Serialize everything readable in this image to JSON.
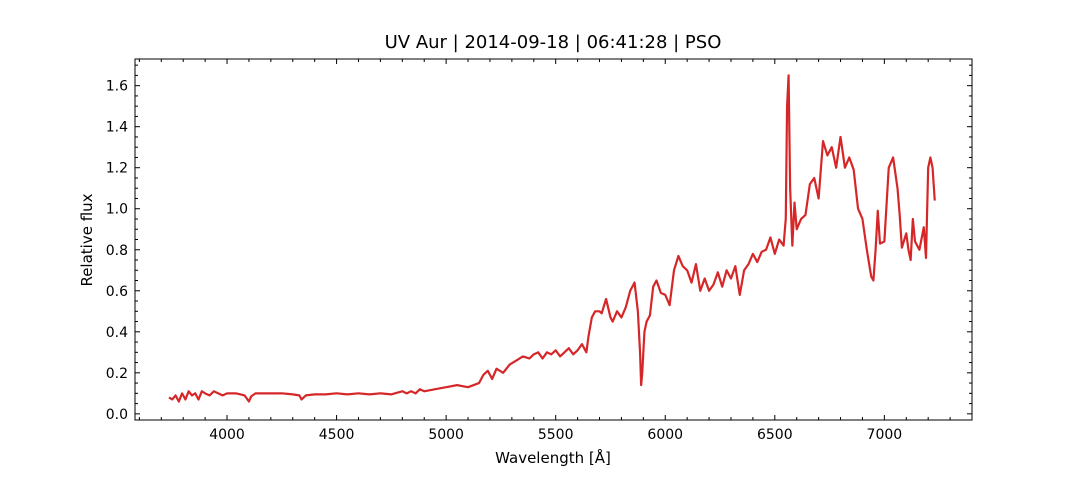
{
  "chart_data": {
    "type": "line",
    "title": "UV Aur | 2014-09-18 | 06:41:28 | PSO",
    "xlabel": "Wavelength [Å]",
    "ylabel": "Relative flux",
    "xlim": [
      3580,
      7400
    ],
    "ylim": [
      -0.03,
      1.73
    ],
    "xticks": [
      4000,
      4500,
      5000,
      5500,
      6000,
      6500,
      7000
    ],
    "yticks": [
      0.0,
      0.2,
      0.4,
      0.6,
      0.8,
      1.0,
      1.2,
      1.4,
      1.6
    ],
    "ytick_labels": [
      "0.0",
      "0.2",
      "0.4",
      "0.6",
      "0.8",
      "1.0",
      "1.2",
      "1.4",
      "1.6"
    ],
    "minor_ticks": true,
    "grid": false,
    "series": [
      {
        "color": "#d62728",
        "x": [
          3735,
          3750,
          3765,
          3780,
          3795,
          3810,
          3825,
          3840,
          3855,
          3870,
          3885,
          3900,
          3920,
          3940,
          3960,
          3980,
          4000,
          4020,
          4040,
          4060,
          4080,
          4100,
          4110,
          4130,
          4160,
          4200,
          4250,
          4300,
          4330,
          4340,
          4360,
          4400,
          4450,
          4500,
          4550,
          4600,
          4650,
          4700,
          4750,
          4800,
          4820,
          4840,
          4861,
          4880,
          4900,
          4950,
          5000,
          5050,
          5100,
          5150,
          5170,
          5190,
          5210,
          5230,
          5260,
          5290,
          5320,
          5350,
          5380,
          5400,
          5420,
          5440,
          5460,
          5480,
          5500,
          5520,
          5540,
          5560,
          5580,
          5600,
          5620,
          5640,
          5650,
          5665,
          5680,
          5700,
          5710,
          5730,
          5750,
          5760,
          5780,
          5800,
          5820,
          5840,
          5860,
          5875,
          5885,
          5890,
          5895,
          5905,
          5915,
          5930,
          5945,
          5960,
          5980,
          6000,
          6020,
          6040,
          6060,
          6080,
          6100,
          6120,
          6140,
          6160,
          6180,
          6200,
          6220,
          6240,
          6260,
          6280,
          6300,
          6320,
          6340,
          6360,
          6380,
          6400,
          6420,
          6440,
          6460,
          6480,
          6500,
          6520,
          6540,
          6550,
          6556,
          6563,
          6570,
          6580,
          6590,
          6600,
          6620,
          6640,
          6660,
          6680,
          6700,
          6720,
          6740,
          6760,
          6780,
          6800,
          6820,
          6840,
          6860,
          6880,
          6900,
          6920,
          6940,
          6950,
          6960,
          6970,
          6980,
          7000,
          7020,
          7040,
          7060,
          7070,
          7080,
          7100,
          7110,
          7120,
          7130,
          7140,
          7160,
          7180,
          7190,
          7200,
          7210,
          7220,
          7230
        ],
        "y": [
          0.08,
          0.07,
          0.09,
          0.06,
          0.1,
          0.07,
          0.11,
          0.09,
          0.1,
          0.07,
          0.11,
          0.1,
          0.09,
          0.11,
          0.1,
          0.09,
          0.1,
          0.1,
          0.1,
          0.095,
          0.09,
          0.06,
          0.085,
          0.1,
          0.1,
          0.1,
          0.1,
          0.095,
          0.09,
          0.07,
          0.09,
          0.095,
          0.095,
          0.1,
          0.095,
          0.1,
          0.095,
          0.1,
          0.095,
          0.11,
          0.1,
          0.11,
          0.1,
          0.12,
          0.11,
          0.12,
          0.13,
          0.14,
          0.13,
          0.15,
          0.19,
          0.21,
          0.17,
          0.22,
          0.2,
          0.24,
          0.26,
          0.28,
          0.27,
          0.29,
          0.3,
          0.27,
          0.3,
          0.29,
          0.31,
          0.28,
          0.3,
          0.32,
          0.29,
          0.31,
          0.34,
          0.3,
          0.38,
          0.47,
          0.5,
          0.5,
          0.49,
          0.56,
          0.47,
          0.45,
          0.5,
          0.47,
          0.52,
          0.6,
          0.64,
          0.5,
          0.3,
          0.14,
          0.2,
          0.4,
          0.45,
          0.48,
          0.62,
          0.65,
          0.59,
          0.58,
          0.53,
          0.7,
          0.77,
          0.72,
          0.7,
          0.64,
          0.73,
          0.6,
          0.66,
          0.6,
          0.63,
          0.69,
          0.62,
          0.7,
          0.66,
          0.72,
          0.58,
          0.7,
          0.73,
          0.78,
          0.74,
          0.79,
          0.8,
          0.86,
          0.78,
          0.85,
          0.82,
          0.95,
          1.5,
          1.65,
          1.1,
          0.82,
          1.03,
          0.9,
          0.95,
          0.97,
          1.12,
          1.15,
          1.05,
          1.33,
          1.26,
          1.3,
          1.2,
          1.35,
          1.2,
          1.25,
          1.19,
          1.0,
          0.95,
          0.8,
          0.67,
          0.65,
          0.8,
          0.99,
          0.83,
          0.84,
          1.2,
          1.25,
          1.1,
          0.97,
          0.81,
          0.88,
          0.8,
          0.75,
          0.95,
          0.84,
          0.8,
          0.91,
          0.76,
          1.2,
          1.25,
          1.2,
          1.04
        ]
      }
    ]
  }
}
